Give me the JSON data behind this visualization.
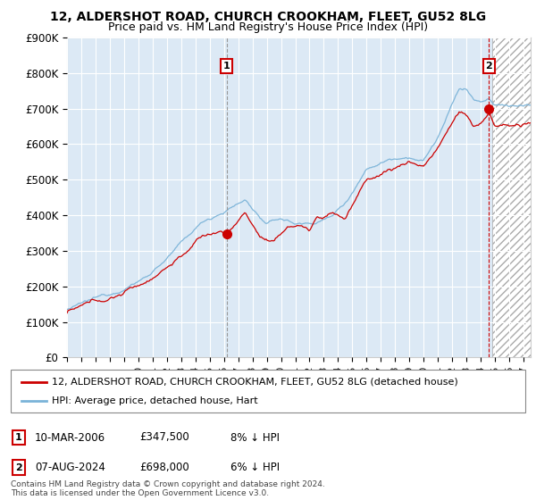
{
  "title": "12, ALDERSHOT ROAD, CHURCH CROOKHAM, FLEET, GU52 8LG",
  "subtitle": "Price paid vs. HM Land Registry's House Price Index (HPI)",
  "plot_bg_color": "#dce9f5",
  "hpi_color": "#7ab3d8",
  "price_color": "#cc0000",
  "ylim": [
    0,
    900000
  ],
  "yticks": [
    0,
    100000,
    200000,
    300000,
    400000,
    500000,
    600000,
    700000,
    800000,
    900000
  ],
  "ytick_labels": [
    "£0",
    "£100K",
    "£200K",
    "£300K",
    "£400K",
    "£500K",
    "£600K",
    "£700K",
    "£800K",
    "£900K"
  ],
  "xlim_start": 1995.0,
  "xlim_end": 2027.5,
  "legend1_label": "12, ALDERSHOT ROAD, CHURCH CROOKHAM, FLEET, GU52 8LG (detached house)",
  "legend2_label": "HPI: Average price, detached house, Hart",
  "marker1_date": 2006.19,
  "marker1_price": 347500,
  "marker2_date": 2024.58,
  "marker2_price": 698000,
  "hatch_start": 2024.83,
  "footnote": "Contains HM Land Registry data © Crown copyright and database right 2024.\nThis data is licensed under the Open Government Licence v3.0.",
  "row1_box": "1",
  "row1_date": "10-MAR-2006",
  "row1_price": "£347,500",
  "row1_hpi": "8% ↓ HPI",
  "row2_box": "2",
  "row2_date": "07-AUG-2024",
  "row2_price": "£698,000",
  "row2_hpi": "6% ↓ HPI"
}
